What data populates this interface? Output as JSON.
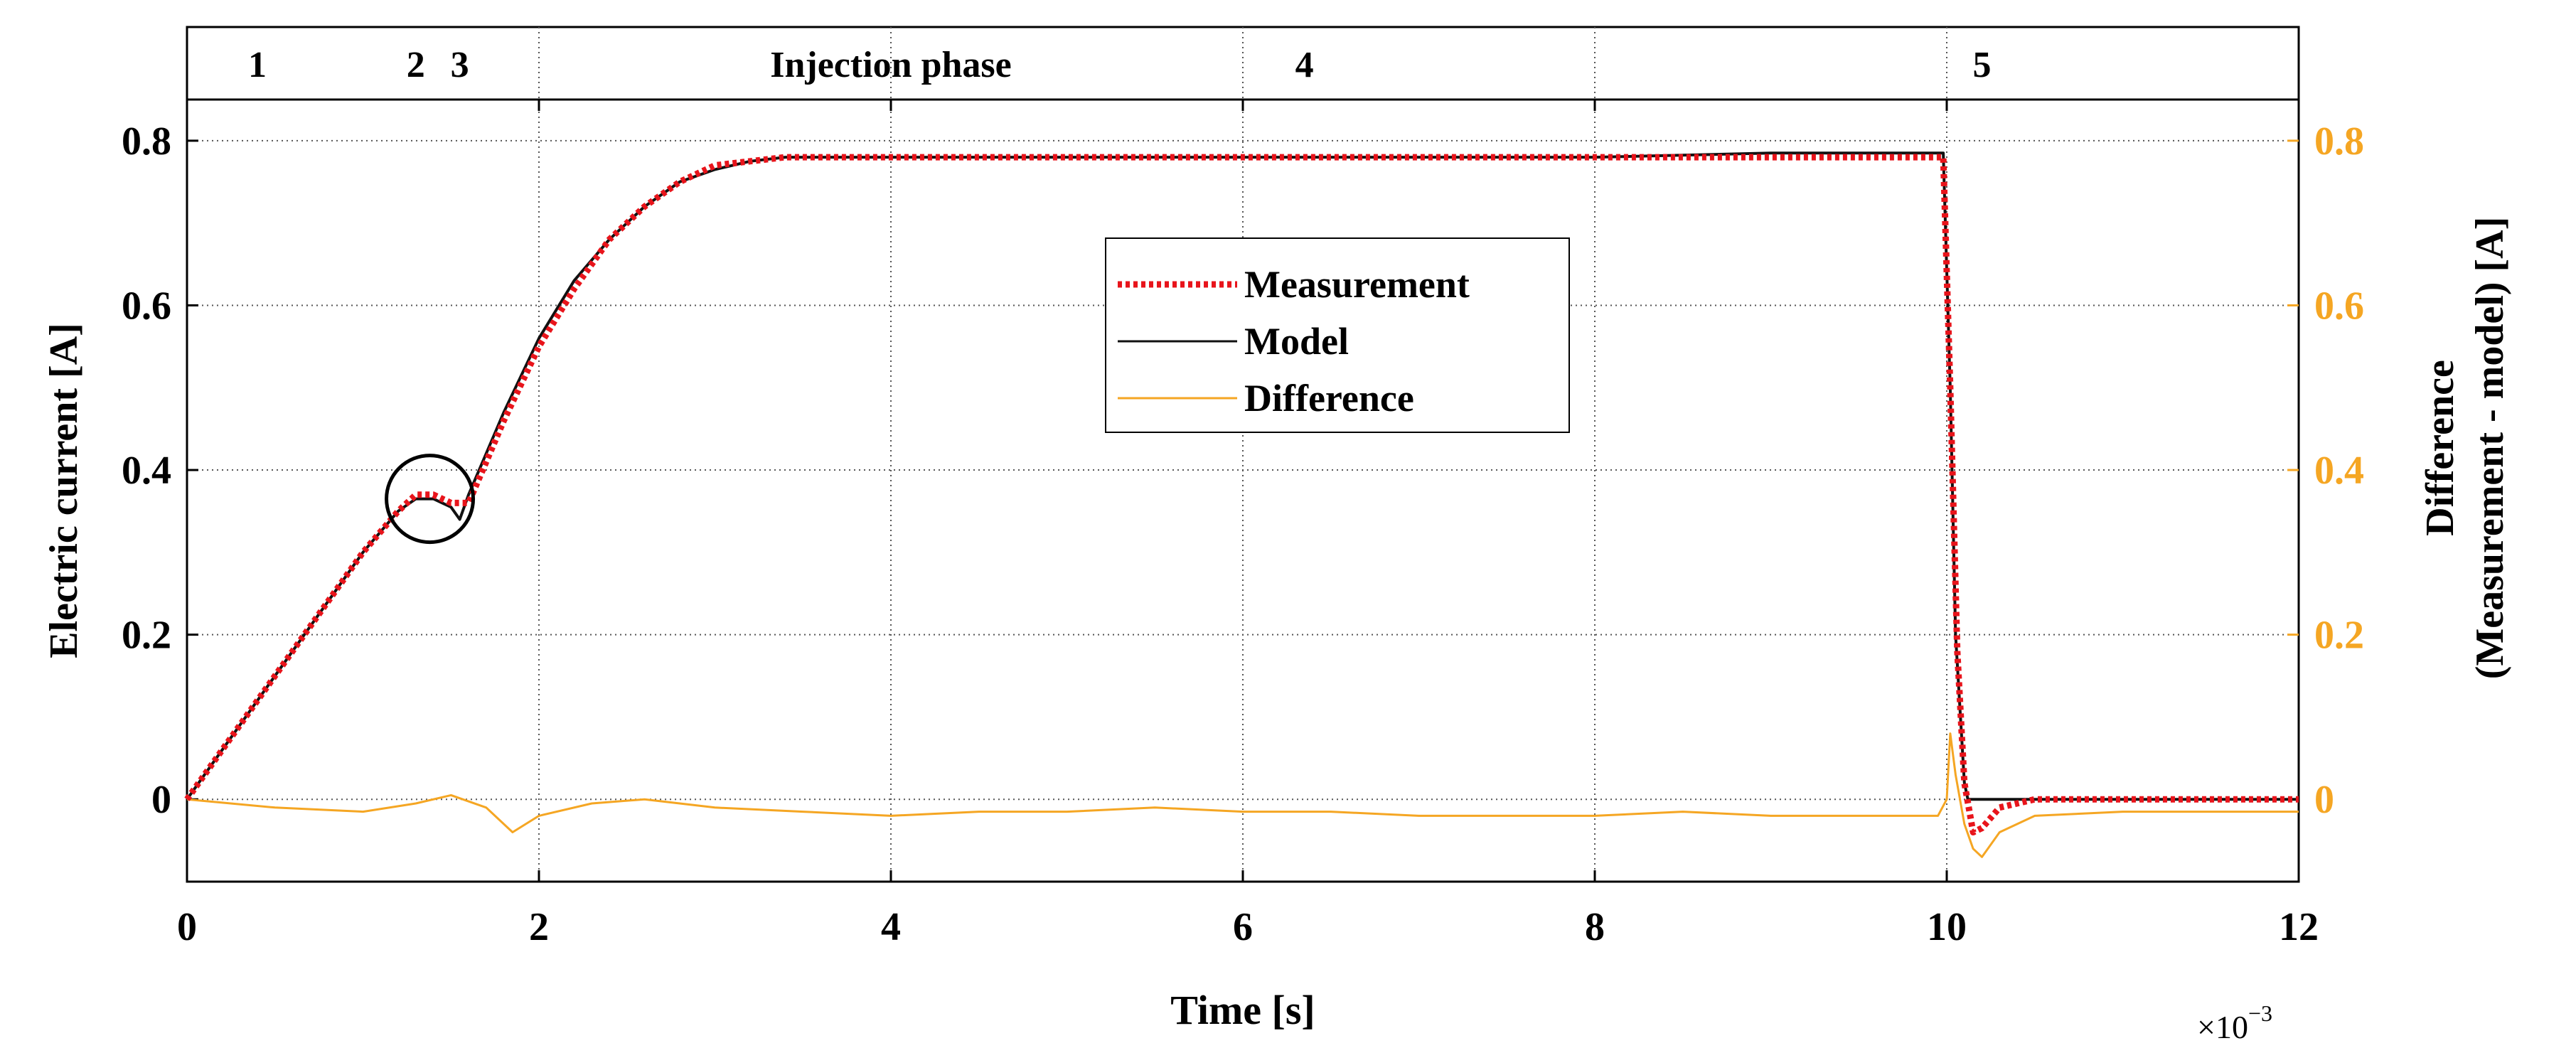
{
  "chart_data": {
    "type": "line",
    "title": "",
    "xlabel": "Time [s]",
    "x_multiplier": "×10",
    "x_multiplier_exp": "−3",
    "ylabel": "Electric current [A]",
    "y2label_line1": "Difference",
    "y2label_line2": "(Measurement - model) [A]",
    "xlim": [
      0,
      12
    ],
    "ylim": [
      -0.1,
      0.85
    ],
    "y2lim": [
      -0.1,
      0.85
    ],
    "x_ticks": [
      0,
      2,
      4,
      6,
      8,
      10,
      12
    ],
    "x_tick_labels": [
      "0",
      "2",
      "4",
      "6",
      "8",
      "10",
      "12"
    ],
    "y_ticks": [
      0,
      0.2,
      0.4,
      0.6,
      0.8
    ],
    "y_tick_labels": [
      "0",
      "0.2",
      "0.4",
      "0.6",
      "0.8"
    ],
    "y2_tick_labels": [
      "0",
      "0.2",
      "0.4",
      "0.6",
      "0.8"
    ],
    "grid": true,
    "legend_position": "center",
    "phase_labels": [
      {
        "x": 0.4,
        "text": "1"
      },
      {
        "x": 1.3,
        "text": "2"
      },
      {
        "x": 1.55,
        "text": "3"
      },
      {
        "x": 4.0,
        "text": "Injection phase"
      },
      {
        "x": 6.35,
        "text": "4"
      },
      {
        "x": 10.2,
        "text": "5"
      }
    ],
    "annotation_circle": {
      "x": 1.38,
      "y": 0.365
    },
    "series": [
      {
        "name": "Measurement",
        "color": "#e8141b",
        "style": "dotted",
        "x": [
          0,
          0.2,
          0.4,
          0.6,
          0.8,
          1.0,
          1.2,
          1.3,
          1.4,
          1.5,
          1.6,
          1.7,
          1.8,
          2.0,
          2.2,
          2.4,
          2.6,
          2.8,
          3.0,
          3.2,
          3.4,
          3.6,
          4.0,
          5.0,
          6.0,
          7.0,
          8.0,
          9.0,
          9.6,
          9.98,
          10.02,
          10.06,
          10.1,
          10.15,
          10.2,
          10.3,
          10.5,
          11.0,
          12.0
        ],
        "values": [
          0,
          0.06,
          0.12,
          0.18,
          0.24,
          0.3,
          0.35,
          0.37,
          0.37,
          0.36,
          0.36,
          0.41,
          0.46,
          0.55,
          0.62,
          0.68,
          0.72,
          0.75,
          0.77,
          0.775,
          0.78,
          0.78,
          0.78,
          0.78,
          0.78,
          0.78,
          0.78,
          0.78,
          0.78,
          0.78,
          0.5,
          0.18,
          0.02,
          -0.04,
          -0.035,
          -0.01,
          0,
          0,
          0
        ]
      },
      {
        "name": "Model",
        "color": "#111111",
        "style": "solid",
        "x": [
          0,
          0.2,
          0.4,
          0.6,
          0.8,
          1.0,
          1.2,
          1.3,
          1.4,
          1.5,
          1.55,
          1.6,
          1.7,
          1.8,
          2.0,
          2.2,
          2.4,
          2.6,
          2.8,
          3.0,
          3.2,
          3.4,
          3.6,
          4.0,
          5.0,
          6.0,
          7.0,
          8.0,
          9.0,
          9.98,
          10.02,
          10.05,
          10.1,
          10.12,
          11.0,
          12.0
        ],
        "values": [
          0,
          0.06,
          0.12,
          0.18,
          0.24,
          0.3,
          0.35,
          0.365,
          0.365,
          0.355,
          0.34,
          0.37,
          0.42,
          0.47,
          0.56,
          0.63,
          0.68,
          0.72,
          0.75,
          0.765,
          0.775,
          0.78,
          0.78,
          0.78,
          0.78,
          0.78,
          0.78,
          0.78,
          0.785,
          0.785,
          0.5,
          0.2,
          0.02,
          0,
          0,
          0
        ]
      },
      {
        "name": "Difference",
        "color": "#f5a623",
        "style": "solid",
        "x": [
          0,
          0.5,
          1.0,
          1.3,
          1.5,
          1.7,
          1.85,
          2.0,
          2.3,
          2.6,
          3.0,
          3.5,
          4.0,
          4.5,
          5.0,
          5.5,
          6.0,
          6.5,
          7.0,
          7.5,
          8.0,
          8.5,
          9.0,
          9.5,
          9.95,
          10.0,
          10.02,
          10.05,
          10.1,
          10.15,
          10.2,
          10.3,
          10.5,
          11.0,
          11.5,
          12.0
        ],
        "values": [
          0,
          -0.01,
          -0.015,
          -0.005,
          0.005,
          -0.01,
          -0.04,
          -0.02,
          -0.005,
          0,
          -0.01,
          -0.015,
          -0.02,
          -0.015,
          -0.015,
          -0.01,
          -0.015,
          -0.015,
          -0.02,
          -0.02,
          -0.02,
          -0.015,
          -0.02,
          -0.02,
          -0.02,
          0,
          0.08,
          0.03,
          -0.03,
          -0.06,
          -0.07,
          -0.04,
          -0.02,
          -0.015,
          -0.015,
          -0.015
        ]
      }
    ]
  }
}
